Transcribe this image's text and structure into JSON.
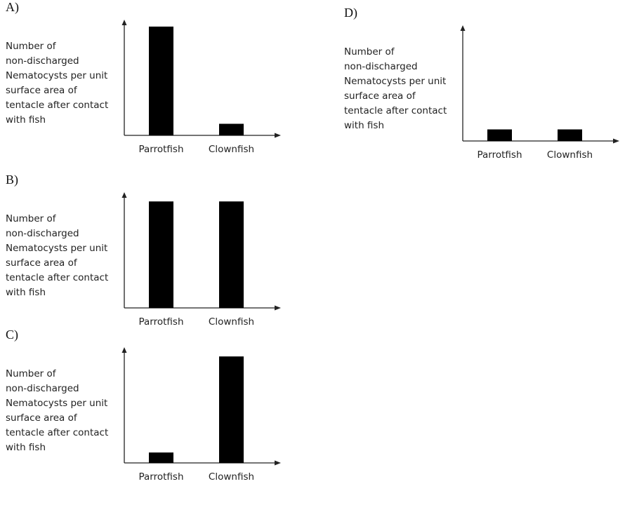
{
  "chart_data": [
    {
      "type": "bar",
      "panel": "A)",
      "ylabel": "Number of\nnon-discharged\nNematocysts per unit\nsurface area of\ntentacle after contact\nwith fish",
      "categories": [
        "Parrotfish",
        "Clownfish"
      ],
      "values": [
        0.94,
        0.1
      ],
      "ylim": [
        0,
        1
      ],
      "grid": false,
      "bar_color": "#000000"
    },
    {
      "type": "bar",
      "panel": "B)",
      "ylabel": "Number of\nnon-discharged\nNematocysts per unit\nsurface area of\ntentacle after contact\nwith fish",
      "categories": [
        "Parrotfish",
        "Clownfish"
      ],
      "values": [
        0.92,
        0.92
      ],
      "ylim": [
        0,
        1
      ],
      "grid": false,
      "bar_color": "#000000"
    },
    {
      "type": "bar",
      "panel": "C)",
      "ylabel": "Number of\nnon-discharged\nNematocysts per unit\nsurface area of\ntentacle after contact\nwith fish",
      "categories": [
        "Parrotfish",
        "Clownfish"
      ],
      "values": [
        0.09,
        0.92
      ],
      "ylim": [
        0,
        1
      ],
      "grid": false,
      "bar_color": "#000000"
    },
    {
      "type": "bar",
      "panel": "D)",
      "ylabel": "Number of\nnon-discharged\nNematocysts per unit\nsurface area of\ntentacle after contact\nwith fish",
      "categories": [
        "Parrotfish",
        "Clownfish"
      ],
      "values": [
        0.1,
        0.1
      ],
      "ylim": [
        0,
        1
      ],
      "grid": false,
      "bar_color": "#000000"
    }
  ]
}
